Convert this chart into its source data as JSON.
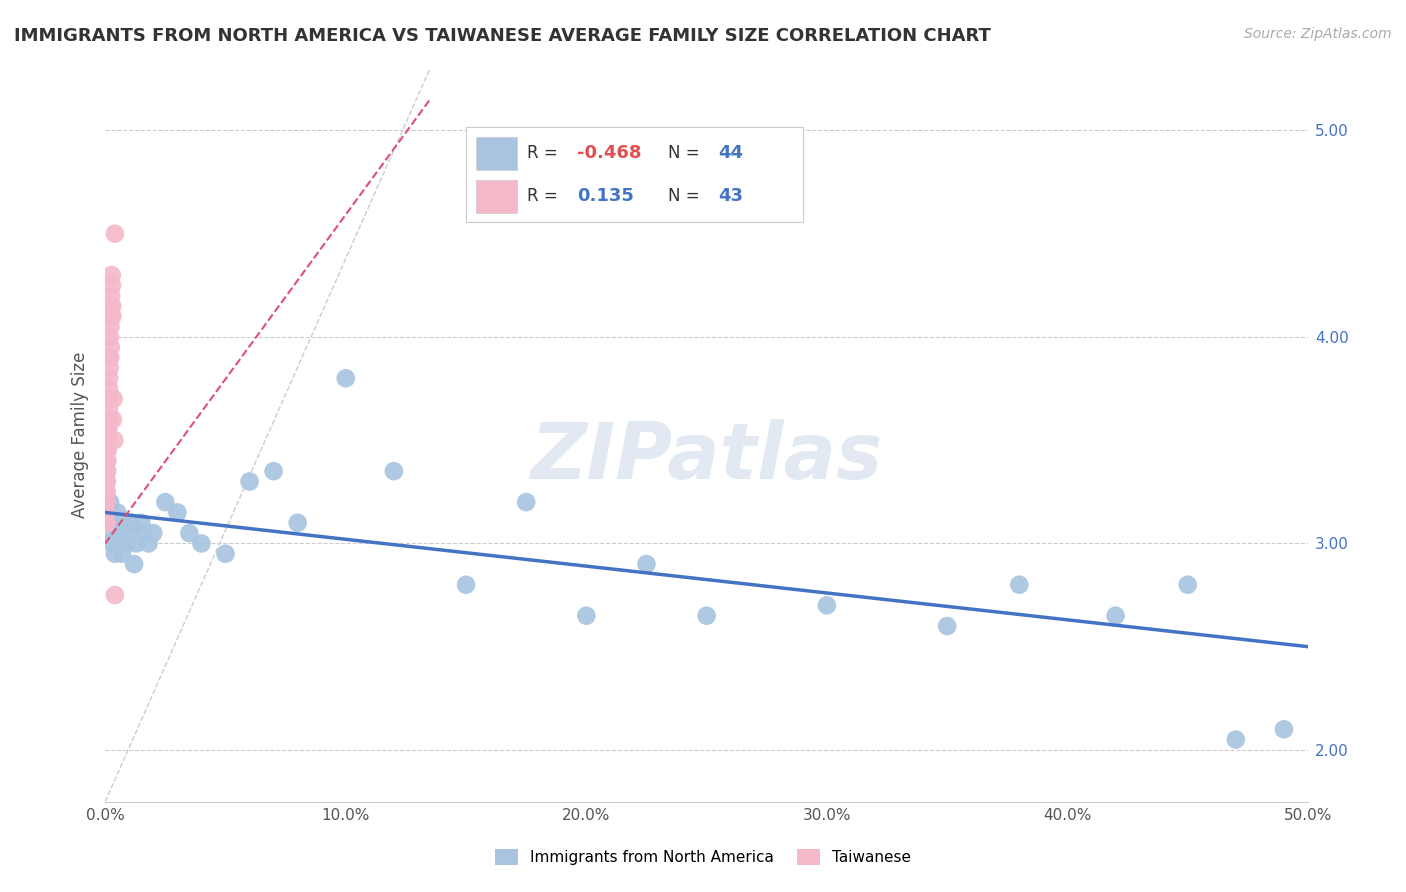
{
  "title": "IMMIGRANTS FROM NORTH AMERICA VS TAIWANESE AVERAGE FAMILY SIZE CORRELATION CHART",
  "source_text": "Source: ZipAtlas.com",
  "ylabel": "Average Family Size",
  "xlim": [
    0.0,
    0.5
  ],
  "ylim": [
    1.75,
    5.3
  ],
  "xticks": [
    0.0,
    0.1,
    0.2,
    0.3,
    0.4,
    0.5
  ],
  "xticklabels": [
    "0.0%",
    "10.0%",
    "20.0%",
    "30.0%",
    "40.0%",
    "50.0%"
  ],
  "yticks_right": [
    2.0,
    3.0,
    4.0,
    5.0
  ],
  "yticks_right_labels": [
    "2.00",
    "3.00",
    "4.00",
    "5.00"
  ],
  "grid_color": "#cccccc",
  "background_color": "#ffffff",
  "watermark": "ZIPatlas",
  "blue_series": {
    "label": "Immigrants from North America",
    "color": "#a8c4e0",
    "line_color": "#4472c4",
    "x": [
      0.001,
      0.002,
      0.002,
      0.003,
      0.003,
      0.004,
      0.004,
      0.005,
      0.005,
      0.006,
      0.006,
      0.007,
      0.008,
      0.009,
      0.01,
      0.011,
      0.012,
      0.013,
      0.015,
      0.016,
      0.018,
      0.02,
      0.025,
      0.03,
      0.035,
      0.04,
      0.05,
      0.06,
      0.07,
      0.08,
      0.1,
      0.12,
      0.15,
      0.175,
      0.2,
      0.225,
      0.25,
      0.3,
      0.35,
      0.38,
      0.42,
      0.45,
      0.47,
      0.49
    ],
    "y": [
      3.15,
      3.1,
      3.2,
      3.05,
      3.0,
      2.95,
      3.1,
      3.15,
      3.0,
      3.1,
      3.05,
      2.95,
      3.1,
      3.0,
      3.05,
      3.1,
      2.9,
      3.0,
      3.1,
      3.05,
      3.0,
      3.05,
      3.2,
      3.15,
      3.05,
      3.0,
      2.95,
      3.3,
      3.35,
      3.1,
      3.8,
      3.35,
      2.8,
      3.2,
      2.65,
      2.9,
      2.65,
      2.7,
      2.6,
      2.8,
      2.65,
      2.8,
      2.05,
      2.1
    ]
  },
  "pink_series": {
    "label": "Taiwanese",
    "color": "#f4b8c8",
    "line_color": "#e05070",
    "x": [
      0.0002,
      0.0003,
      0.0003,
      0.0004,
      0.0004,
      0.0005,
      0.0005,
      0.0006,
      0.0006,
      0.0007,
      0.0007,
      0.0008,
      0.0008,
      0.0009,
      0.0009,
      0.001,
      0.001,
      0.0011,
      0.0012,
      0.0013,
      0.0014,
      0.0015,
      0.0015,
      0.0016,
      0.0017,
      0.0018,
      0.0019,
      0.002,
      0.0021,
      0.0022,
      0.0023,
      0.0024,
      0.0025,
      0.0026,
      0.0027,
      0.0028,
      0.0029,
      0.003,
      0.0032,
      0.0035,
      0.0038,
      0.004,
      0.004
    ],
    "y": [
      3.1,
      3.2,
      3.15,
      3.25,
      3.1,
      3.3,
      3.2,
      3.35,
      3.25,
      3.4,
      3.3,
      3.45,
      3.35,
      3.5,
      3.4,
      3.55,
      3.45,
      3.6,
      3.5,
      3.55,
      3.6,
      3.65,
      3.7,
      3.75,
      3.8,
      3.9,
      3.85,
      4.0,
      3.9,
      4.05,
      3.95,
      4.1,
      4.2,
      4.15,
      4.3,
      4.25,
      4.15,
      4.1,
      3.6,
      3.7,
      3.5,
      4.5,
      2.75
    ]
  },
  "legend": {
    "blue_R": "-0.468",
    "blue_N": "44",
    "pink_R": "0.135",
    "pink_N": "43"
  }
}
